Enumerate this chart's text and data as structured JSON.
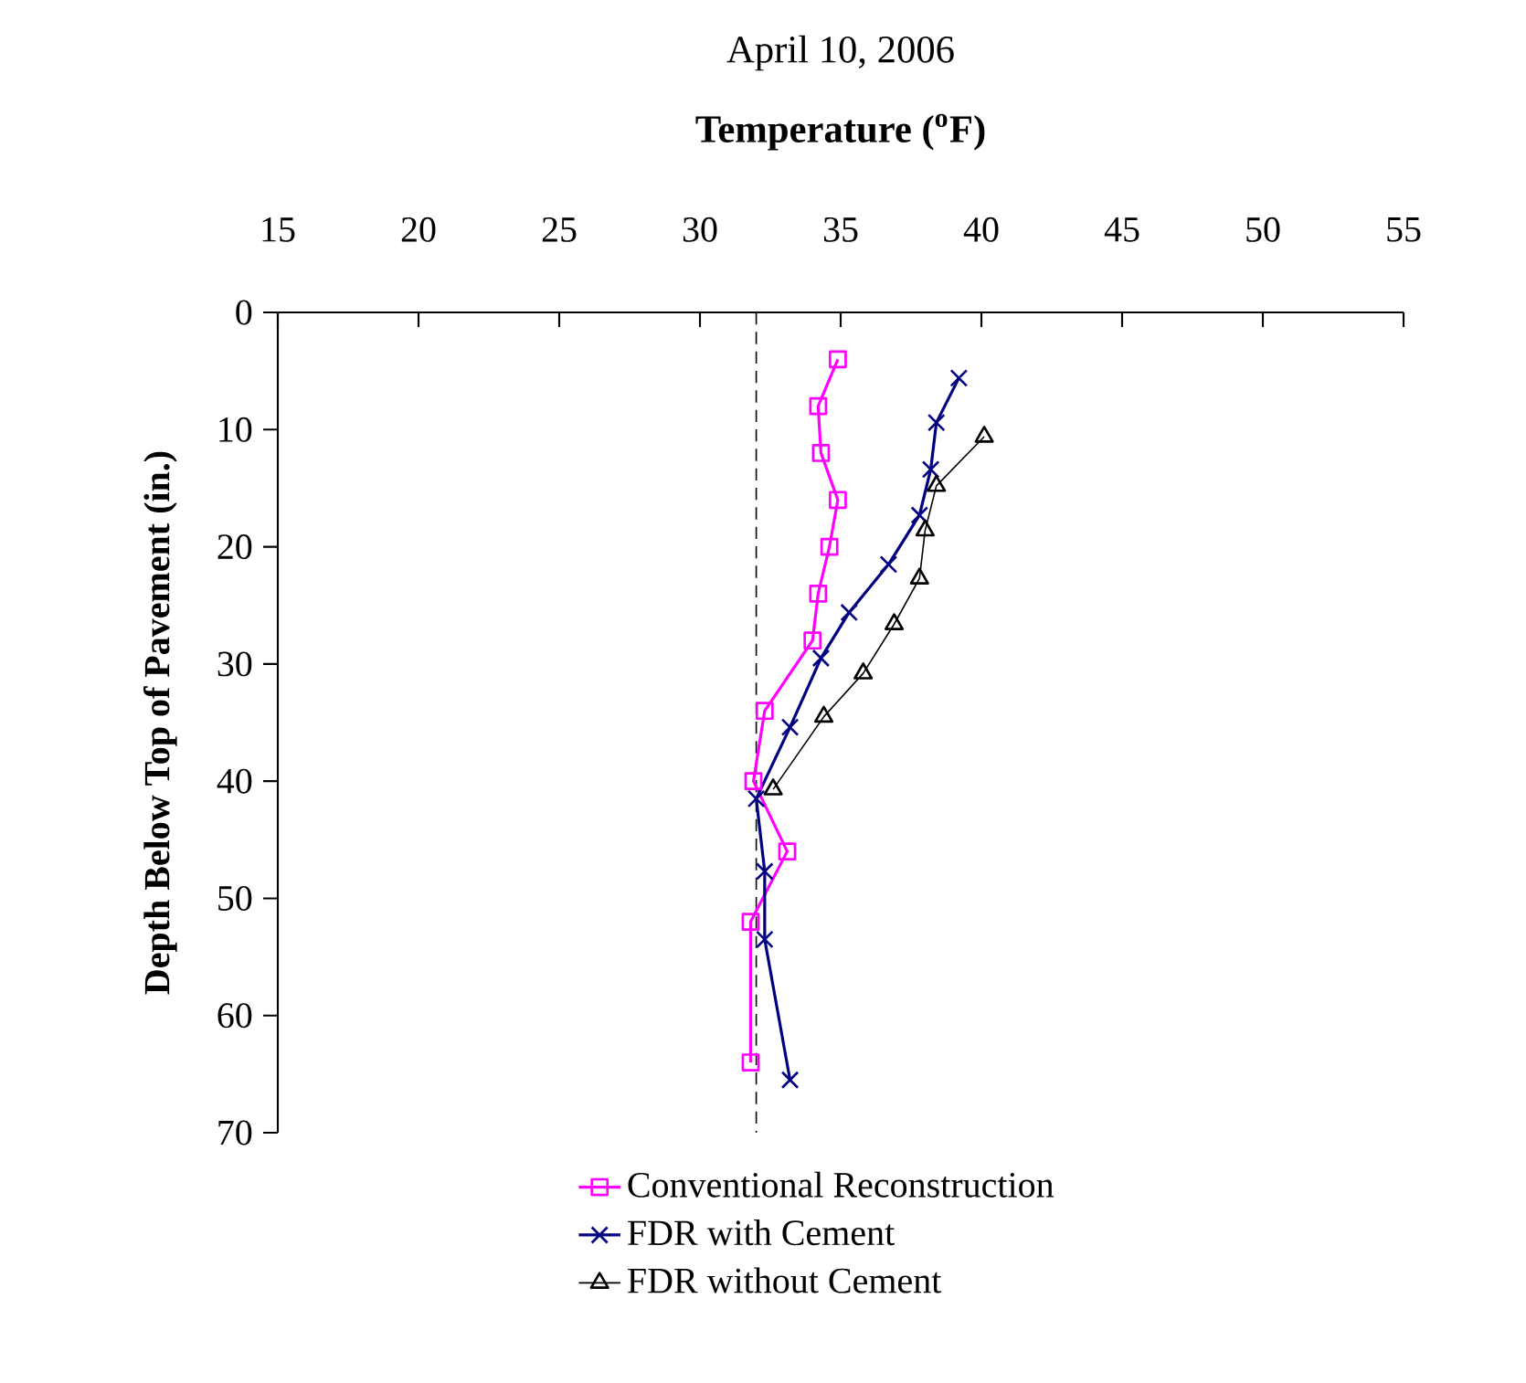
{
  "chart_data": {
    "type": "line",
    "title": "April 10, 2006",
    "xlabel": "Temperature ($^{o}$F)",
    "ylabel": "Depth Below Top of Pavement (in.)",
    "xlim": [
      15,
      55
    ],
    "xticks": [
      15,
      20,
      25,
      30,
      35,
      40,
      45,
      50,
      55
    ],
    "ylim": [
      70,
      0
    ],
    "yticks": [
      0,
      10,
      20,
      30,
      40,
      50,
      60,
      70
    ],
    "legend": "bottom",
    "grid": false,
    "ref_lines": [
      {
        "axis": "x",
        "value": 32,
        "line_style": "dashed",
        "color": "#000000"
      }
    ],
    "series": [
      {
        "name": "Conventional Reconstruction",
        "color": "#ff00ff",
        "marker": "square",
        "x": [
          34.9,
          34.2,
          34.3,
          34.9,
          34.6,
          34.2,
          34.0,
          32.3,
          31.9,
          33.1,
          31.8,
          31.8
        ],
        "values": [
          4,
          8,
          12,
          16,
          20,
          24,
          28,
          34,
          40,
          46,
          52,
          64
        ]
      },
      {
        "name": "FDR with Cement",
        "color": "#000080",
        "marker": "cross",
        "x": [
          39.2,
          38.4,
          38.2,
          37.8,
          36.7,
          35.3,
          34.3,
          33.2,
          32.0,
          32.3,
          32.3,
          33.2
        ],
        "values": [
          5.6,
          9.4,
          13.4,
          17.3,
          21.5,
          25.6,
          29.5,
          35.4,
          41.5,
          47.7,
          53.5,
          65.5
        ]
      },
      {
        "name": "FDR without Cement",
        "color": "#000000",
        "marker": "triangle",
        "x": [
          40.1,
          38.4,
          38.0,
          37.8,
          36.9,
          35.8,
          34.4,
          32.6
        ],
        "values": [
          10.6,
          14.8,
          18.6,
          22.7,
          26.6,
          30.8,
          34.5,
          40.7
        ]
      }
    ]
  }
}
